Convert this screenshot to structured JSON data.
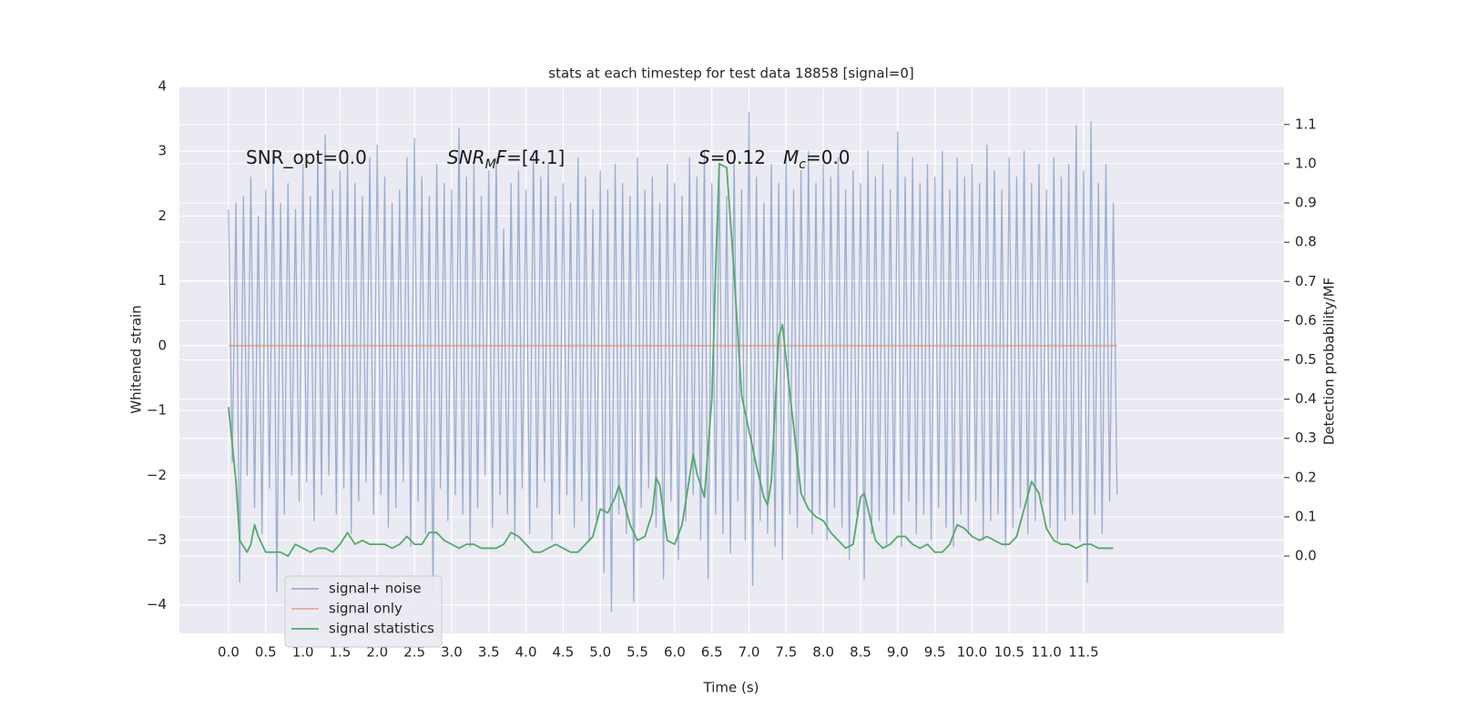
{
  "chart_data": {
    "type": "line",
    "title": "stats at each timestep for test data 18858 [signal=0]",
    "xlabel": "Time (s)",
    "ylabel": "Whitened strain",
    "y2label": "Detection probability/MF",
    "background": "#eaeaf2",
    "grid": true,
    "legend": "lower left",
    "xlim": [
      -0.661,
      14.195
    ],
    "ylim": [
      -4.44,
      4.0
    ],
    "y2lim": [
      -0.197,
      1.197
    ],
    "xticks": [
      {
        "value": 0,
        "label": "0.0"
      },
      {
        "value": 0.5,
        "label": "0.5"
      },
      {
        "value": 1,
        "label": "1.0"
      },
      {
        "value": 1.5,
        "label": "1.5"
      },
      {
        "value": 2,
        "label": "2.0"
      },
      {
        "value": 2.5,
        "label": "2.5"
      },
      {
        "value": 3,
        "label": "3.0"
      },
      {
        "value": 3.5,
        "label": "3.5"
      },
      {
        "value": 4,
        "label": "4.0"
      },
      {
        "value": 4.5,
        "label": "4.5"
      },
      {
        "value": 5,
        "label": "5.0"
      },
      {
        "value": 5.5,
        "label": "5.5"
      },
      {
        "value": 6,
        "label": "6.0"
      },
      {
        "value": 6.5,
        "label": "6.5"
      },
      {
        "value": 7,
        "label": "7.0"
      },
      {
        "value": 7.5,
        "label": "7.5"
      },
      {
        "value": 8,
        "label": "8.0"
      },
      {
        "value": 8.5,
        "label": "8.5"
      },
      {
        "value": 9,
        "label": "9.0"
      },
      {
        "value": 9.5,
        "label": "9.5"
      },
      {
        "value": 10,
        "label": "10.0"
      },
      {
        "value": 10.5,
        "label": "10.5"
      },
      {
        "value": 11,
        "label": "11.0"
      },
      {
        "value": 11.5,
        "label": "11.5"
      }
    ],
    "yticks": [
      {
        "value": -4,
        "label": "−4"
      },
      {
        "value": -3,
        "label": "−3"
      },
      {
        "value": -2,
        "label": "−2"
      },
      {
        "value": -1,
        "label": "−1"
      },
      0,
      1,
      2,
      3,
      4
    ],
    "y2ticks": [
      {
        "value": 0,
        "label": "0.0"
      },
      0.1,
      0.2,
      0.3,
      0.4,
      0.5,
      0.6,
      0.7,
      0.8,
      0.9,
      {
        "value": 1,
        "label": "1.0"
      },
      1.1
    ],
    "annotations": [
      {
        "parts": [
          {
            "text": "SNR_opt=0.0"
          }
        ]
      },
      {
        "parts": [
          {
            "text": "SNR",
            "italic": true
          },
          {
            "text": "M",
            "italic": true,
            "sub": true
          },
          {
            "text": "F",
            "italic": true
          },
          {
            "text": "=[4.1]"
          }
        ]
      },
      {
        "parts": [
          {
            "text": "S",
            "italic": true
          },
          {
            "text": "=0.12"
          }
        ]
      },
      {
        "parts": [
          {
            "text": "M",
            "italic": true
          },
          {
            "text": "c",
            "italic": true,
            "sub": true
          },
          {
            "text": "=0.0"
          }
        ]
      }
    ],
    "series": [
      {
        "name": "signal+ noise",
        "color": "#4c72b0",
        "opacity": 0.5,
        "x": [
          0,
          0.05,
          0.1,
          0.15,
          0.2,
          0.25,
          0.3,
          0.35,
          0.4,
          0.45,
          0.5,
          0.55,
          0.6,
          0.65,
          0.7,
          0.75,
          0.8,
          0.85,
          0.9,
          0.95,
          1,
          1.05,
          1.1,
          1.15,
          1.2,
          1.25,
          1.3,
          1.35,
          1.4,
          1.45,
          1.5,
          1.55,
          1.6,
          1.65,
          1.7,
          1.75,
          1.8,
          1.85,
          1.9,
          1.95,
          2,
          2.05,
          2.1,
          2.15,
          2.2,
          2.25,
          2.3,
          2.35,
          2.4,
          2.45,
          2.5,
          2.55,
          2.6,
          2.65,
          2.7,
          2.75,
          2.8,
          2.85,
          2.9,
          2.95,
          3,
          3.05,
          3.1,
          3.15,
          3.2,
          3.25,
          3.3,
          3.35,
          3.4,
          3.45,
          3.5,
          3.55,
          3.6,
          3.65,
          3.7,
          3.75,
          3.8,
          3.85,
          3.9,
          3.95,
          4,
          4.05,
          4.1,
          4.15,
          4.2,
          4.25,
          4.3,
          4.35,
          4.4,
          4.45,
          4.5,
          4.55,
          4.6,
          4.65,
          4.7,
          4.75,
          4.8,
          4.85,
          4.9,
          4.95,
          5,
          5.05,
          5.1,
          5.15,
          5.2,
          5.25,
          5.3,
          5.35,
          5.4,
          5.45,
          5.5,
          5.55,
          5.6,
          5.65,
          5.7,
          5.75,
          5.8,
          5.85,
          5.9,
          5.95,
          6,
          6.05,
          6.1,
          6.15,
          6.2,
          6.25,
          6.3,
          6.35,
          6.4,
          6.45,
          6.5,
          6.55,
          6.6,
          6.65,
          6.7,
          6.75,
          6.8,
          6.85,
          6.9,
          6.95,
          7,
          7.05,
          7.1,
          7.15,
          7.2,
          7.25,
          7.3,
          7.35,
          7.4,
          7.45,
          7.5,
          7.55,
          7.6,
          7.65,
          7.7,
          7.75,
          7.8,
          7.85,
          7.9,
          7.95,
          8,
          8.05,
          8.1,
          8.15,
          8.2,
          8.25,
          8.3,
          8.35,
          8.4,
          8.45,
          8.5,
          8.55,
          8.6,
          8.65,
          8.7,
          8.75,
          8.8,
          8.85,
          8.9,
          8.95,
          9,
          9.05,
          9.1,
          9.15,
          9.2,
          9.25,
          9.3,
          9.35,
          9.4,
          9.45,
          9.5,
          9.55,
          9.6,
          9.65,
          9.7,
          9.75,
          9.8,
          9.85,
          9.9,
          9.95,
          10,
          10.05,
          10.1,
          10.15,
          10.2,
          10.25,
          10.3,
          10.35,
          10.4,
          10.45,
          10.5,
          10.55,
          10.6,
          10.65,
          10.7,
          10.75,
          10.8,
          10.85,
          10.9,
          10.95,
          11,
          11.05,
          11.1,
          11.15,
          11.2,
          11.25,
          11.3,
          11.35,
          11.4,
          11.45,
          11.5,
          11.55,
          11.6,
          11.65,
          11.7,
          11.75,
          11.8,
          11.85,
          11.9,
          11.95
        ],
        "values": [
          2.1,
          -1.8,
          2.2,
          -3.65,
          2.3,
          -2.0,
          2.6,
          -2.5,
          2.0,
          -2.9,
          2.4,
          -2.2,
          2.9,
          -3.8,
          2.2,
          -2.6,
          2.5,
          -2.0,
          2.1,
          -2.4,
          2.8,
          -2.1,
          2.3,
          -2.7,
          3.0,
          -2.3,
          3.25,
          -2.0,
          2.4,
          -2.6,
          2.7,
          -2.2,
          2.9,
          -2.9,
          2.5,
          -2.4,
          2.3,
          -2.1,
          2.9,
          -2.6,
          3.1,
          -2.3,
          2.6,
          -2.8,
          2.2,
          -2.5,
          2.4,
          -2.1,
          2.9,
          -3.1,
          3.2,
          -2.4,
          2.6,
          -2.9,
          2.3,
          -3.8,
          2.8,
          -2.2,
          2.5,
          -2.7,
          2.4,
          -2.3,
          3.35,
          -2.6,
          2.6,
          -3.1,
          2.8,
          -2.5,
          2.3,
          -2.0,
          2.7,
          -2.8,
          2.9,
          -2.3,
          1.8,
          -2.6,
          2.5,
          -3.0,
          2.7,
          -2.2,
          2.4,
          -2.9,
          3.0,
          -2.5,
          2.6,
          -2.1,
          2.8,
          -3.0,
          2.3,
          -2.6,
          2.5,
          -2.3,
          2.2,
          -2.8,
          2.9,
          -2.4,
          2.6,
          -3.0,
          2.1,
          -2.7,
          2.7,
          -3.5,
          2.4,
          -4.1,
          2.8,
          -2.6,
          2.5,
          -2.9,
          2.3,
          -3.95,
          2.9,
          -2.5,
          2.4,
          -2.2,
          2.6,
          -2.8,
          2.2,
          -3.6,
          2.8,
          -2.4,
          2.5,
          -3.3,
          2.3,
          -2.7,
          2.9,
          -2.3,
          2.6,
          -3.0,
          3.0,
          -3.6,
          2.5,
          -2.6,
          2.7,
          -2.9,
          2.3,
          -3.2,
          2.9,
          -2.4,
          2.4,
          -3.0,
          3.6,
          -3.7,
          2.6,
          -2.7,
          2.2,
          -2.9,
          2.8,
          -3.1,
          2.5,
          -3.3,
          2.9,
          -2.6,
          2.4,
          -2.8,
          2.7,
          -2.4,
          3.0,
          -2.9,
          2.5,
          -2.6,
          2.8,
          -3.0,
          2.6,
          -2.5,
          2.9,
          -2.8,
          2.4,
          -3.3,
          2.7,
          -2.6,
          2.5,
          -3.6,
          3.0,
          -2.9,
          2.6,
          -2.7,
          2.8,
          -3.1,
          2.4,
          -2.6,
          3.3,
          -3.1,
          2.6,
          -2.4,
          2.9,
          -2.9,
          2.5,
          -2.6,
          2.8,
          -3.0,
          2.6,
          -2.5,
          3.0,
          -2.8,
          2.4,
          -3.1,
          2.9,
          -2.6,
          2.6,
          -2.9,
          2.8,
          -2.4,
          2.5,
          -3.0,
          3.1,
          -2.7,
          2.7,
          -2.6,
          2.4,
          -3.1,
          2.9,
          -2.8,
          2.6,
          -2.5,
          3.0,
          -2.9,
          2.5,
          -2.7,
          2.8,
          -2.4,
          2.4,
          -2.8,
          2.9,
          -3.0,
          2.6,
          -2.7,
          2.8,
          -2.6,
          3.4,
          -3.0,
          2.7,
          -3.65,
          3.45,
          -2.6,
          2.5,
          -2.9,
          2.8,
          -2.4,
          2.2,
          -2.3
        ]
      },
      {
        "name": "signal only",
        "color": "#dd8452",
        "opacity": 0.6,
        "x": [
          0,
          11.95
        ],
        "values": [
          0,
          0
        ]
      },
      {
        "name": "signal statistics",
        "color": "#55a868",
        "opacity": 1,
        "axis": "y2",
        "x": [
          0,
          0.1,
          0.15,
          0.25,
          0.3,
          0.35,
          0.4,
          0.5,
          0.6,
          0.7,
          0.8,
          0.9,
          1.0,
          1.1,
          1.2,
          1.3,
          1.4,
          1.5,
          1.6,
          1.7,
          1.8,
          1.9,
          2.0,
          2.1,
          2.2,
          2.3,
          2.4,
          2.5,
          2.6,
          2.7,
          2.8,
          2.9,
          3.0,
          3.1,
          3.2,
          3.3,
          3.4,
          3.5,
          3.6,
          3.7,
          3.8,
          3.9,
          4.0,
          4.1,
          4.2,
          4.3,
          4.4,
          4.5,
          4.6,
          4.7,
          4.8,
          4.9,
          5.0,
          5.1,
          5.2,
          5.25,
          5.3,
          5.4,
          5.5,
          5.6,
          5.7,
          5.75,
          5.8,
          5.9,
          6.0,
          6.1,
          6.2,
          6.25,
          6.3,
          6.4,
          6.5,
          6.55,
          6.6,
          6.7,
          6.8,
          6.9,
          7.0,
          7.1,
          7.2,
          7.25,
          7.3,
          7.4,
          7.45,
          7.5,
          7.6,
          7.7,
          7.8,
          7.9,
          8.0,
          8.1,
          8.2,
          8.3,
          8.4,
          8.5,
          8.55,
          8.6,
          8.7,
          8.8,
          8.9,
          9.0,
          9.1,
          9.2,
          9.3,
          9.4,
          9.5,
          9.6,
          9.7,
          9.8,
          9.9,
          10.0,
          10.1,
          10.2,
          10.3,
          10.4,
          10.5,
          10.6,
          10.7,
          10.8,
          10.9,
          11.0,
          11.1,
          11.2,
          11.3,
          11.4,
          11.5,
          11.6,
          11.7,
          11.8,
          11.9
        ],
        "values": [
          0.38,
          0.19,
          0.04,
          0.01,
          0.03,
          0.08,
          0.05,
          0.01,
          0.01,
          0.01,
          0,
          0.03,
          0.02,
          0.01,
          0.02,
          0.02,
          0.01,
          0.03,
          0.06,
          0.03,
          0.04,
          0.03,
          0.03,
          0.03,
          0.02,
          0.03,
          0.05,
          0.03,
          0.03,
          0.06,
          0.06,
          0.04,
          0.03,
          0.02,
          0.03,
          0.03,
          0.02,
          0.02,
          0.02,
          0.03,
          0.06,
          0.05,
          0.03,
          0.01,
          0.01,
          0.02,
          0.03,
          0.02,
          0.01,
          0.01,
          0.03,
          0.05,
          0.12,
          0.11,
          0.15,
          0.18,
          0.15,
          0.08,
          0.04,
          0.05,
          0.11,
          0.2,
          0.18,
          0.04,
          0.03,
          0.08,
          0.2,
          0.26,
          0.21,
          0.15,
          0.4,
          0.72,
          1.0,
          0.99,
          0.72,
          0.41,
          0.32,
          0.23,
          0.15,
          0.13,
          0.19,
          0.56,
          0.59,
          0.5,
          0.33,
          0.16,
          0.12,
          0.1,
          0.09,
          0.06,
          0.04,
          0.02,
          0.03,
          0.15,
          0.16,
          0.12,
          0.04,
          0.02,
          0.03,
          0.05,
          0.05,
          0.03,
          0.02,
          0.03,
          0.01,
          0.01,
          0.03,
          0.08,
          0.07,
          0.05,
          0.04,
          0.05,
          0.04,
          0.03,
          0.03,
          0.05,
          0.12,
          0.19,
          0.16,
          0.07,
          0.04,
          0.03,
          0.03,
          0.02,
          0.03,
          0.03,
          0.02,
          0.02,
          0.02
        ]
      }
    ]
  }
}
